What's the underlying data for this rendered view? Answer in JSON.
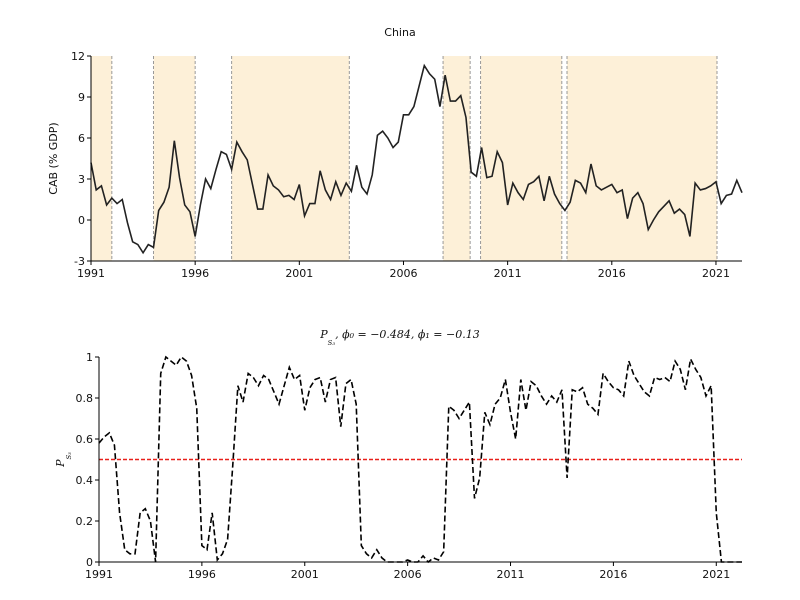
{
  "chart_data": [
    {
      "type": "line",
      "title": "China",
      "ylabel": "CAB (% GDP)",
      "color": "#222222",
      "line_style": "solid",
      "x": [
        1991,
        1991.25,
        1991.5,
        1991.75,
        1992,
        1992.25,
        1992.5,
        1992.75,
        1993,
        1993.25,
        1993.5,
        1993.75,
        1994,
        1994.25,
        1994.5,
        1994.75,
        1995,
        1995.25,
        1995.5,
        1995.75,
        1996,
        1996.25,
        1996.5,
        1996.75,
        1997,
        1997.25,
        1997.5,
        1997.75,
        1998,
        1998.25,
        1998.5,
        1998.75,
        1999,
        1999.25,
        1999.5,
        1999.75,
        2000,
        2000.25,
        2000.5,
        2000.75,
        2001,
        2001.25,
        2001.5,
        2001.75,
        2002,
        2002.25,
        2002.5,
        2002.75,
        2003,
        2003.25,
        2003.5,
        2003.75,
        2004,
        2004.25,
        2004.5,
        2004.75,
        2005,
        2005.25,
        2005.5,
        2005.75,
        2006,
        2006.25,
        2006.5,
        2006.75,
        2007,
        2007.25,
        2007.5,
        2007.75,
        2008,
        2008.25,
        2008.5,
        2008.75,
        2009,
        2009.25,
        2009.5,
        2009.75,
        2010,
        2010.25,
        2010.5,
        2010.75,
        2011,
        2011.25,
        2011.5,
        2011.75,
        2012,
        2012.25,
        2012.5,
        2012.75,
        2013,
        2013.25,
        2013.5,
        2013.75,
        2014,
        2014.25,
        2014.5,
        2014.75,
        2015,
        2015.25,
        2015.5,
        2015.75,
        2016,
        2016.25,
        2016.5,
        2016.75,
        2017,
        2017.25,
        2017.5,
        2017.75,
        2018,
        2018.25,
        2018.5,
        2018.75,
        2019,
        2019.25,
        2019.5,
        2019.75,
        2020,
        2020.25,
        2020.5,
        2020.75,
        2021,
        2021.25,
        2021.5,
        2021.75,
        2022,
        2022.25
      ],
      "values": [
        4.2,
        2.2,
        2.5,
        1.1,
        1.6,
        1.2,
        1.5,
        -0.2,
        -1.6,
        -1.8,
        -2.4,
        -1.8,
        -2.0,
        0.7,
        1.3,
        2.4,
        5.8,
        3.1,
        1.1,
        0.6,
        -1.2,
        1.1,
        3.0,
        2.3,
        3.7,
        5.0,
        4.8,
        3.7,
        5.7,
        5.0,
        4.4,
        2.6,
        0.8,
        0.8,
        3.3,
        2.5,
        2.2,
        1.7,
        1.8,
        1.5,
        2.6,
        0.3,
        1.2,
        1.2,
        3.6,
        2.2,
        1.5,
        2.8,
        1.8,
        2.7,
        2.1,
        4.0,
        2.4,
        1.9,
        3.3,
        6.2,
        6.5,
        6.0,
        5.3,
        5.7,
        7.7,
        7.7,
        8.3,
        9.8,
        11.3,
        10.7,
        10.3,
        8.3,
        10.6,
        8.7,
        8.7,
        9.1,
        7.5,
        3.5,
        3.2,
        5.3,
        3.1,
        3.2,
        5.0,
        4.2,
        1.1,
        2.7,
        2.0,
        1.5,
        2.6,
        2.8,
        3.2,
        1.4,
        3.2,
        1.9,
        1.2,
        0.7,
        1.3,
        2.9,
        2.7,
        2.0,
        4.1,
        2.5,
        2.2,
        2.4,
        2.6,
        2.0,
        2.2,
        0.1,
        1.6,
        2.0,
        1.2,
        -0.7,
        0.0,
        0.6,
        1.0,
        1.4,
        0.5,
        0.8,
        0.4,
        -1.2,
        2.7,
        2.2,
        2.3,
        2.5,
        2.8,
        1.2,
        1.8,
        1.9,
        2.9,
        2.0
      ],
      "regimes": [
        [
          1991,
          1992
        ],
        [
          1994,
          1996
        ],
        [
          1997.75,
          2003.4
        ],
        [
          2007.9,
          2009.2
        ],
        [
          2009.7,
          2013.6
        ],
        [
          2013.85,
          2021.05
        ]
      ],
      "regime_color": "#fdf0d8",
      "regime_edge_color": "#999999",
      "xlim": [
        1991,
        2022.25
      ],
      "xticks": [
        1991,
        1996,
        2001,
        2006,
        2011,
        2016,
        2021
      ],
      "ylim": [
        -3,
        12
      ],
      "yticks": [
        -3,
        0,
        3,
        6,
        9,
        12
      ]
    },
    {
      "type": "line",
      "title_parts": [
        "P",
        "S₃",
        ", ϕ₀ = −0.484, ϕ₁ = −0.13"
      ],
      "ylabel_parts": [
        "P",
        "S₃"
      ],
      "color": "#000000",
      "line_style": "dashed",
      "x": [
        1991,
        1991.25,
        1991.5,
        1991.75,
        1992,
        1992.25,
        1992.5,
        1992.75,
        1993,
        1993.25,
        1993.5,
        1993.75,
        1994,
        1994.25,
        1994.5,
        1994.75,
        1995,
        1995.25,
        1995.5,
        1995.75,
        1996,
        1996.25,
        1996.5,
        1996.75,
        1997,
        1997.25,
        1997.5,
        1997.75,
        1998,
        1998.25,
        1998.5,
        1998.75,
        1999,
        1999.25,
        1999.5,
        1999.75,
        2000,
        2000.25,
        2000.5,
        2000.75,
        2001,
        2001.25,
        2001.5,
        2001.75,
        2002,
        2002.25,
        2002.5,
        2002.75,
        2003,
        2003.25,
        2003.5,
        2003.75,
        2004,
        2004.25,
        2004.5,
        2004.75,
        2005,
        2005.25,
        2005.5,
        2005.75,
        2006,
        2006.25,
        2006.5,
        2006.75,
        2007,
        2007.25,
        2007.5,
        2007.75,
        2008,
        2008.25,
        2008.5,
        2008.75,
        2009,
        2009.25,
        2009.5,
        2009.75,
        2010,
        2010.25,
        2010.5,
        2010.75,
        2011,
        2011.25,
        2011.5,
        2011.75,
        2012,
        2012.25,
        2012.5,
        2012.75,
        2013,
        2013.25,
        2013.5,
        2013.75,
        2014,
        2014.25,
        2014.5,
        2014.75,
        2015,
        2015.25,
        2015.5,
        2015.75,
        2016,
        2016.25,
        2016.5,
        2016.75,
        2017,
        2017.25,
        2017.5,
        2017.75,
        2018,
        2018.25,
        2018.5,
        2018.75,
        2019,
        2019.25,
        2019.5,
        2019.75,
        2020,
        2020.25,
        2020.5,
        2020.75,
        2021,
        2021.25,
        2021.5,
        2021.75,
        2022,
        2022.25
      ],
      "values": [
        0.58,
        0.61,
        0.63,
        0.57,
        0.24,
        0.06,
        0.04,
        0.04,
        0.24,
        0.26,
        0.2,
        0.0,
        0.92,
        1.0,
        0.98,
        0.96,
        1.0,
        0.98,
        0.91,
        0.75,
        0.08,
        0.06,
        0.24,
        0.01,
        0.04,
        0.11,
        0.47,
        0.86,
        0.78,
        0.92,
        0.9,
        0.86,
        0.91,
        0.89,
        0.83,
        0.77,
        0.86,
        0.95,
        0.89,
        0.91,
        0.74,
        0.85,
        0.89,
        0.9,
        0.78,
        0.89,
        0.9,
        0.66,
        0.87,
        0.89,
        0.77,
        0.08,
        0.04,
        0.02,
        0.06,
        0.02,
        0.0,
        0.0,
        0.0,
        0.0,
        0.01,
        0.0,
        0.0,
        0.03,
        0.0,
        0.02,
        0.01,
        0.05,
        0.76,
        0.74,
        0.7,
        0.74,
        0.78,
        0.31,
        0.41,
        0.73,
        0.67,
        0.77,
        0.8,
        0.89,
        0.73,
        0.6,
        0.89,
        0.74,
        0.88,
        0.86,
        0.81,
        0.77,
        0.81,
        0.78,
        0.84,
        0.41,
        0.84,
        0.83,
        0.85,
        0.77,
        0.75,
        0.72,
        0.92,
        0.88,
        0.85,
        0.84,
        0.81,
        0.98,
        0.91,
        0.87,
        0.83,
        0.81,
        0.9,
        0.89,
        0.9,
        0.88,
        0.98,
        0.94,
        0.84,
        0.99,
        0.94,
        0.9,
        0.81,
        0.86,
        0.24,
        0.0,
        0.0,
        0.0,
        0.0,
        0.0
      ],
      "threshold": 0.5,
      "threshold_color": "#e8201a",
      "xlim": [
        1991,
        2022.25
      ],
      "xticks": [
        1991,
        1996,
        2001,
        2006,
        2011,
        2016,
        2021
      ],
      "ylim": [
        0,
        1
      ],
      "yticks": [
        0,
        0.2,
        0.4,
        0.6,
        0.8,
        1
      ]
    }
  ]
}
